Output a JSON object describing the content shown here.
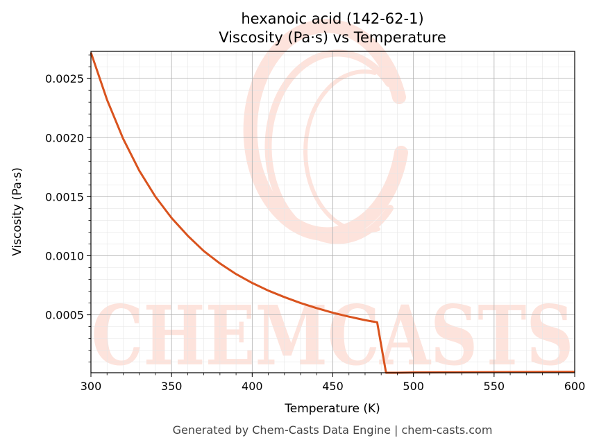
{
  "chart_data": {
    "type": "line",
    "title": "hexanoic acid (142-62-1)",
    "subtitle": "Viscosity (Pa·s) vs Temperature",
    "xlabel": "Temperature (K)",
    "ylabel": "Viscosity (Pa·s)",
    "xlim": [
      300,
      600
    ],
    "ylim": [
      1e-05,
      0.00273
    ],
    "x_ticks": [
      300,
      350,
      400,
      450,
      500,
      550,
      600
    ],
    "x_tick_labels": [
      "300",
      "350",
      "400",
      "450",
      "500",
      "550",
      "600"
    ],
    "y_ticks": [
      0.0005,
      0.001,
      0.0015,
      0.002,
      0.0025
    ],
    "y_tick_labels": [
      "0.0005",
      "0.0010",
      "0.0015",
      "0.0020",
      "0.0025"
    ],
    "grid": true,
    "legend": "none",
    "series": [
      {
        "color": "#d9531e",
        "x": [
          300,
          310,
          320,
          330,
          340,
          350,
          360,
          370,
          380,
          390,
          400,
          410,
          420,
          430,
          440,
          450,
          460,
          470,
          477.5,
          483,
          490,
          500,
          550,
          600
        ],
        "y": [
          0.00272,
          0.00232,
          0.00199,
          0.00172,
          0.0015,
          0.00132,
          0.00117,
          0.00104,
          0.000935,
          0.000845,
          0.00077,
          0.000705,
          0.00065,
          0.0006,
          0.000557,
          0.000518,
          0.000485,
          0.000455,
          0.000437,
          1e-05,
          1e-05,
          1.2e-05,
          1.5e-05,
          1.8e-05
        ]
      }
    ]
  },
  "watermark": {
    "text": "CHEMCASTS",
    "color": "#fde3dc"
  },
  "footer": "Generated by Chem-Casts Data Engine | chem-casts.com"
}
